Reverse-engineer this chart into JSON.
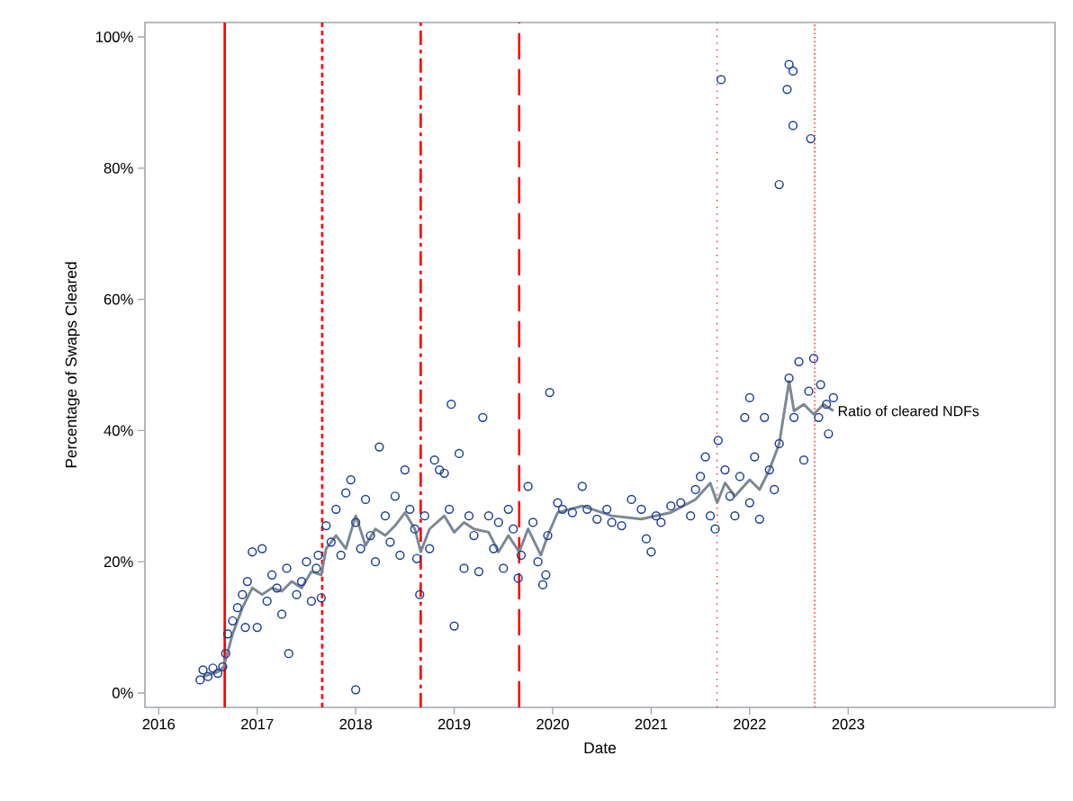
{
  "chart_data": {
    "type": "scatter",
    "xlabel": "Date",
    "ylabel": "Percentage of Swaps Cleared",
    "xlim": [
      2015.86,
      2025.1
    ],
    "ylim": [
      -2.2,
      102.2
    ],
    "xticks": [
      2016,
      2017,
      2018,
      2019,
      2020,
      2021,
      2022,
      2023
    ],
    "yticks": [
      {
        "value": 0,
        "label": "0%"
      },
      {
        "value": 20,
        "label": "20%"
      },
      {
        "value": 40,
        "label": "40%"
      },
      {
        "value": 60,
        "label": "60%"
      },
      {
        "value": 80,
        "label": "80%"
      },
      {
        "value": 100,
        "label": "100%"
      }
    ],
    "grid": false,
    "series": [
      {
        "marker": "circle",
        "color": "#1b3f94",
        "x": [
          2016.42,
          2016.45,
          2016.5,
          2016.55,
          2016.6,
          2016.65,
          2016.68,
          2016.7,
          2016.75,
          2016.8,
          2016.85,
          2016.9,
          2016.88,
          2016.95,
          2017.05,
          2017.0,
          2017.1,
          2017.15,
          2017.2,
          2017.25,
          2017.3,
          2017.32,
          2017.4,
          2017.45,
          2017.5,
          2017.55,
          2017.6,
          2017.62,
          2017.65,
          2017.7,
          2017.75,
          2017.8,
          2017.85,
          2017.9,
          2017.95,
          2018.0,
          2018.0,
          2018.05,
          2018.1,
          2018.15,
          2018.2,
          2018.24,
          2018.3,
          2018.35,
          2018.4,
          2018.5,
          2018.45,
          2018.55,
          2018.6,
          2018.62,
          2018.65,
          2018.7,
          2018.75,
          2018.8,
          2018.85,
          2018.9,
          2018.95,
          2018.97,
          2019.0,
          2019.05,
          2019.1,
          2019.15,
          2019.2,
          2019.25,
          2019.29,
          2019.35,
          2019.4,
          2019.45,
          2019.5,
          2019.55,
          2019.6,
          2019.65,
          2019.68,
          2019.75,
          2019.8,
          2019.85,
          2019.9,
          2019.95,
          2019.93,
          2019.97,
          2020.05,
          2020.1,
          2020.2,
          2020.3,
          2020.35,
          2020.45,
          2020.55,
          2020.6,
          2020.7,
          2020.8,
          2020.9,
          2020.95,
          2021.0,
          2021.05,
          2021.1,
          2021.2,
          2021.3,
          2021.4,
          2021.45,
          2021.5,
          2021.55,
          2021.6,
          2021.65,
          2021.68,
          2021.71,
          2021.75,
          2021.8,
          2021.85,
          2021.9,
          2021.95,
          2022.0,
          2022.0,
          2022.05,
          2022.1,
          2022.15,
          2022.2,
          2022.25,
          2022.3,
          2022.3,
          2022.38,
          2022.4,
          2022.44,
          2022.44,
          2022.4,
          2022.45,
          2022.5,
          2022.55,
          2022.6,
          2022.62,
          2022.65,
          2022.7,
          2022.72,
          2022.78,
          2022.8,
          2022.85
        ],
        "values": [
          2,
          3.5,
          2.5,
          3.8,
          3,
          4,
          6,
          9,
          11,
          13,
          15,
          17,
          10,
          21.5,
          22,
          10,
          14,
          18,
          16,
          12,
          19,
          6,
          15,
          17,
          20,
          14,
          19,
          21,
          14.5,
          25.5,
          23,
          28,
          21,
          30.5,
          32.5,
          0.5,
          26,
          22,
          29.5,
          24,
          20,
          37.5,
          27,
          23,
          30,
          34,
          21,
          28,
          25,
          20.5,
          15,
          27,
          22,
          35.5,
          34,
          33.5,
          28,
          44,
          10.2,
          36.5,
          19,
          27,
          24,
          18.5,
          42,
          27,
          22,
          26,
          19,
          28,
          25,
          17.5,
          21,
          31.5,
          26,
          20,
          16.5,
          24,
          18,
          45.8,
          29,
          28,
          27.5,
          31.5,
          28,
          26.5,
          28,
          26,
          25.5,
          29.5,
          28,
          23.5,
          21.5,
          27,
          26,
          28.5,
          29,
          27,
          31,
          33,
          36,
          27,
          25,
          38.5,
          93.5,
          34,
          30,
          27,
          33,
          42,
          45,
          29,
          36,
          26.5,
          42,
          34,
          31,
          38,
          77.5,
          92,
          95.8,
          94.8,
          86.5,
          48,
          42,
          50.5,
          35.5,
          46,
          84.5,
          51,
          42,
          47,
          44,
          39.5,
          45
        ]
      },
      {
        "type": "line",
        "name": "Ratio of cleared NDFs",
        "color": "#7b8794",
        "marker": "none",
        "x": [
          2016.45,
          2016.6,
          2016.66,
          2016.75,
          2016.85,
          2016.95,
          2017.05,
          2017.15,
          2017.25,
          2017.35,
          2017.45,
          2017.55,
          2017.65,
          2017.7,
          2017.8,
          2017.9,
          2018.0,
          2018.1,
          2018.2,
          2018.3,
          2018.4,
          2018.5,
          2018.6,
          2018.66,
          2018.75,
          2018.9,
          2019.0,
          2019.1,
          2019.2,
          2019.35,
          2019.45,
          2019.55,
          2019.66,
          2019.75,
          2019.88,
          2019.95,
          2020.05,
          2020.3,
          2020.6,
          2020.9,
          2021.2,
          2021.45,
          2021.6,
          2021.67,
          2021.75,
          2021.85,
          2022.0,
          2022.1,
          2022.2,
          2022.3,
          2022.4,
          2022.45,
          2022.55,
          2022.65,
          2022.75,
          2022.85
        ],
        "values": [
          2.5,
          3.2,
          4,
          9,
          13,
          16,
          15,
          16,
          15.5,
          17,
          16,
          18.5,
          18,
          22,
          24,
          22,
          27,
          22.5,
          25,
          24,
          25.5,
          27.5,
          25,
          21.5,
          25,
          27,
          24.5,
          26,
          25,
          24.5,
          21.5,
          24,
          21.5,
          25,
          21,
          24,
          27.5,
          28.5,
          27,
          26.5,
          27.5,
          29.5,
          32,
          29,
          32,
          30,
          32.5,
          31,
          34,
          38,
          47.5,
          43,
          44,
          42.5,
          44,
          43
        ]
      }
    ],
    "ref_lines": [
      {
        "axis": "x",
        "value": 2016.67,
        "color": "#ff0000",
        "line_style": "solid"
      },
      {
        "axis": "x",
        "value": 2017.66,
        "color": "#ff0000",
        "line_style": "dashed"
      },
      {
        "axis": "x",
        "value": 2018.66,
        "color": "#ff0000",
        "line_style": "dashdot"
      },
      {
        "axis": "x",
        "value": 2019.66,
        "color": "#ff0000",
        "line_style": "longdash"
      },
      {
        "axis": "x",
        "value": 2021.67,
        "color": "#ff4040",
        "line_style": "dotted"
      },
      {
        "axis": "x",
        "value": 2022.66,
        "color": "#ff4040",
        "line_style": "densedotted"
      }
    ]
  }
}
